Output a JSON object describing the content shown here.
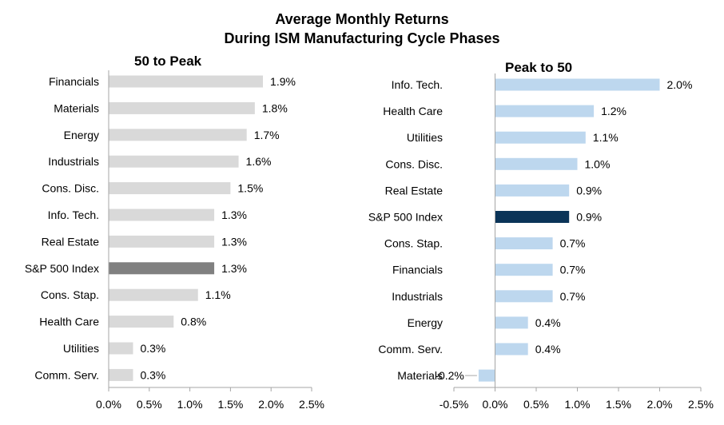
{
  "chart_data": [
    {
      "type": "bar",
      "orientation": "horizontal",
      "title": "50 to Peak",
      "categories": [
        "Financials",
        "Materials",
        "Energy",
        "Industrials",
        "Cons. Disc.",
        "Info. Tech.",
        "Real Estate",
        "S&P 500 Index",
        "Cons. Stap.",
        "Health Care",
        "Utilities",
        "Comm. Serv."
      ],
      "values": [
        1.9,
        1.8,
        1.7,
        1.6,
        1.5,
        1.3,
        1.3,
        1.3,
        1.1,
        0.8,
        0.3,
        0.3
      ],
      "value_labels": [
        "1.9%",
        "1.8%",
        "1.7%",
        "1.6%",
        "1.5%",
        "1.3%",
        "1.3%",
        "1.3%",
        "1.1%",
        "0.8%",
        "0.3%",
        "0.3%"
      ],
      "highlight": "S&P 500 Index",
      "xlim": [
        0,
        2.5
      ],
      "xticks": [
        0,
        0.5,
        1.0,
        1.5,
        2.0,
        2.5
      ],
      "xtick_labels": [
        "0.0%",
        "0.5%",
        "1.0%",
        "1.5%",
        "2.0%",
        "2.5%"
      ],
      "bar_color": "#d9d9d9",
      "highlight_color": "#808080",
      "grid": false,
      "legend": "none"
    },
    {
      "type": "bar",
      "orientation": "horizontal",
      "title": "Peak to 50",
      "categories": [
        "Info. Tech.",
        "Health Care",
        "Utilities",
        "Cons. Disc.",
        "Real Estate",
        "S&P 500 Index",
        "Cons. Stap.",
        "Financials",
        "Industrials",
        "Energy",
        "Comm. Serv.",
        "Materials"
      ],
      "values": [
        2.0,
        1.2,
        1.1,
        1.0,
        0.9,
        0.9,
        0.7,
        0.7,
        0.7,
        0.4,
        0.4,
        -0.2
      ],
      "value_labels": [
        "2.0%",
        "1.2%",
        "1.1%",
        "1.0%",
        "0.9%",
        "0.9%",
        "0.7%",
        "0.7%",
        "0.7%",
        "0.4%",
        "0.4%",
        "-0.2%"
      ],
      "highlight": "S&P 500 Index",
      "xlim": [
        -0.5,
        2.5
      ],
      "xticks": [
        -0.5,
        0,
        0.5,
        1.0,
        1.5,
        2.0,
        2.5
      ],
      "xtick_labels": [
        "-0.5%",
        "0.0%",
        "0.5%",
        "1.0%",
        "1.5%",
        "2.0%",
        "2.5%"
      ],
      "bar_color": "#bdd7ee",
      "highlight_color": "#0b3458",
      "grid": false,
      "legend": "none"
    }
  ],
  "page_title": {
    "line1": "Average Monthly Returns",
    "line2": "During ISM Manufacturing Cycle Phases"
  }
}
